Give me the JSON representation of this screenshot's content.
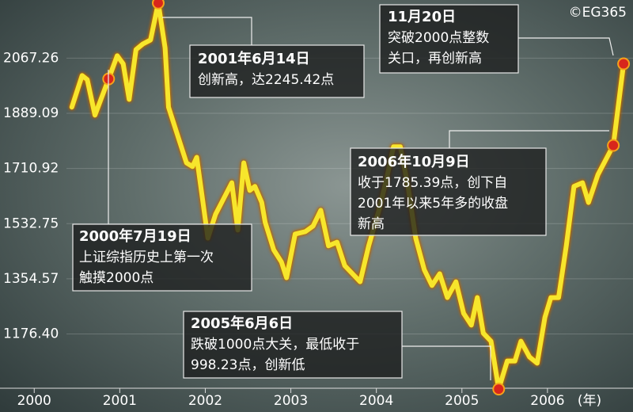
{
  "chart_data": {
    "type": "line",
    "credit": "©EG365",
    "x": [
      2000.44,
      2000.56,
      2000.62,
      2000.71,
      2000.87,
      2000.97,
      2001.04,
      2001.11,
      2001.19,
      2001.27,
      2001.36,
      2001.45,
      2001.53,
      2001.57,
      2001.69,
      2001.78,
      2001.85,
      2001.9,
      2001.96,
      2002.03,
      2002.12,
      2002.24,
      2002.31,
      2002.38,
      2002.45,
      2002.52,
      2002.58,
      2002.66,
      2002.7,
      2002.8,
      2002.89,
      2002.95,
      2003.05,
      2003.17,
      2003.26,
      2003.35,
      2003.44,
      2003.54,
      2003.63,
      2003.72,
      2003.81,
      2003.91,
      2004.03,
      2004.12,
      2004.2,
      2004.28,
      2004.37,
      2004.46,
      2004.56,
      2004.65,
      2004.74,
      2004.83,
      2004.93,
      2005.02,
      2005.11,
      2005.18,
      2005.25,
      2005.34,
      2005.43,
      2005.53,
      2005.62,
      2005.69,
      2005.79,
      2005.88,
      2005.97,
      2006.04,
      2006.13,
      2006.22,
      2006.31,
      2006.41,
      2006.48,
      2006.59,
      2006.77,
      2006.89
    ],
    "values": [
      1909,
      2011,
      1998,
      1883,
      2000,
      2075,
      2049,
      1934,
      2095,
      2113,
      2126,
      2245.42,
      2100,
      1909,
      1806,
      1729,
      1717,
      1747,
      1627,
      1486,
      1563,
      1627,
      1665,
      1512,
      1729,
      1640,
      1653,
      1601,
      1537,
      1448,
      1409,
      1358,
      1499,
      1507,
      1525,
      1576,
      1461,
      1473,
      1397,
      1371,
      1345,
      1461,
      1576,
      1678,
      1781,
      1781,
      1653,
      1486,
      1384,
      1333,
      1371,
      1294,
      1345,
      1243,
      1205,
      1294,
      1179,
      1153,
      998.23,
      1089,
      1089,
      1153,
      1102,
      1082,
      1230,
      1294,
      1294,
      1461,
      1653,
      1665,
      1601,
      1691,
      1785.39,
      2049
    ],
    "color": "#f7e62c",
    "markers": [
      4,
      11,
      58,
      72,
      73
    ],
    "xlim": [
      1999.6,
      2007.0
    ],
    "xticks": [
      2000,
      2001,
      2002,
      2003,
      2004,
      2005,
      2006
    ],
    "xlabel": "(年)",
    "ylim": [
      950,
      2255
    ],
    "yticks": [
      {
        "value": 1176.4,
        "label": "1176.40"
      },
      1354.57,
      1532.75,
      1710.92,
      1889.09,
      2067.26
    ],
    "grid": true,
    "annotations": [
      {
        "heading": "2001年6月14日",
        "lines": [
          "创新高，达2245.42点"
        ]
      },
      {
        "heading": "11月20日",
        "lines": [
          "突破2000点整数",
          "关口，再创新高"
        ]
      },
      {
        "heading": "2006年10月9日",
        "lines": [
          "收于1785.39点，创下自",
          "2001年以来5年多的收盘",
          "新高"
        ]
      },
      {
        "heading": "2000年7月19日",
        "lines": [
          "上证综指历史上第一次",
          "触摸2000点"
        ]
      },
      {
        "heading": "2005年6月6日",
        "lines": [
          "跌破1000点大关，最低收于",
          "998.23点，创新低"
        ]
      }
    ]
  }
}
